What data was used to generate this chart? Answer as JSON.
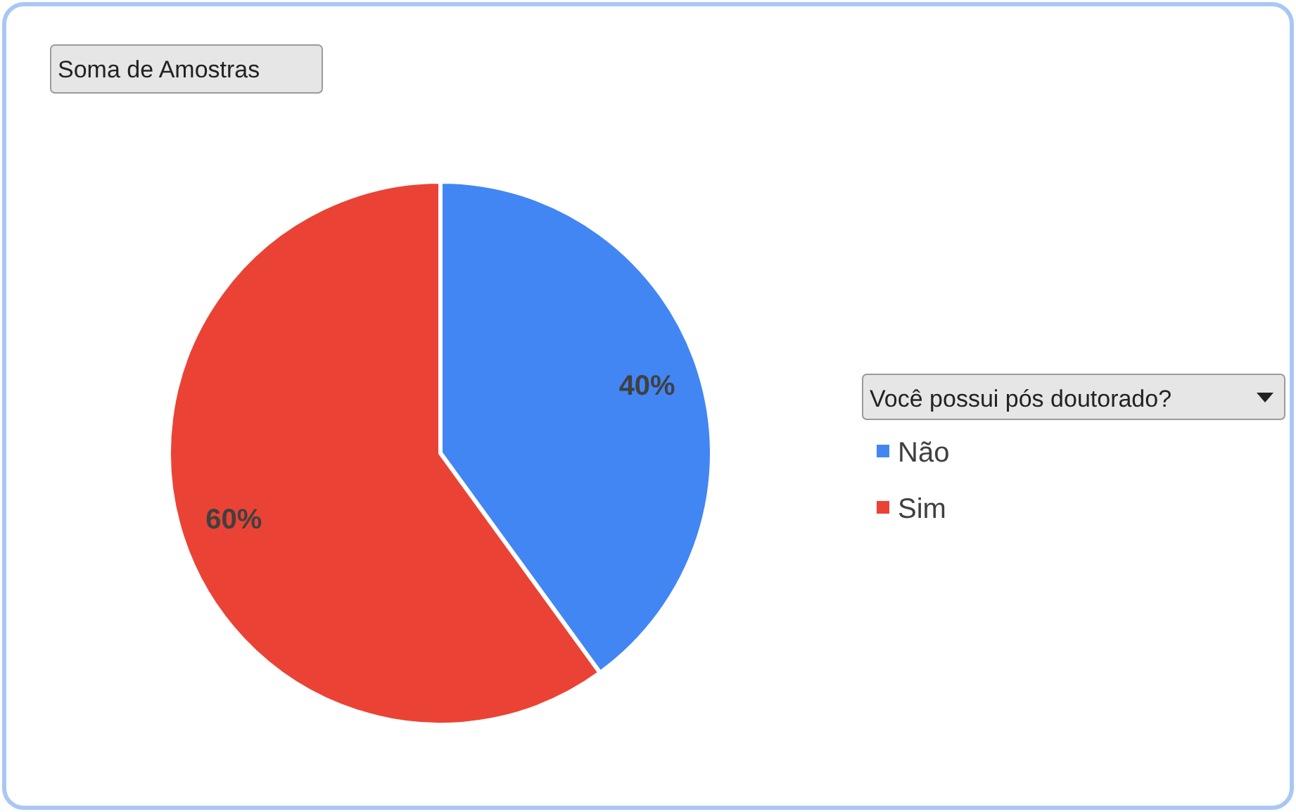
{
  "chart_data": {
    "type": "pie",
    "title": "Soma de Amostras",
    "legend_title": "Você possui pós doutorado?",
    "categories": [
      "Não",
      "Sim"
    ],
    "values": [
      40,
      60
    ],
    "value_labels": [
      "40%",
      "60%"
    ],
    "colors": [
      "#4286f4",
      "#ea4335"
    ],
    "legend": "right"
  }
}
